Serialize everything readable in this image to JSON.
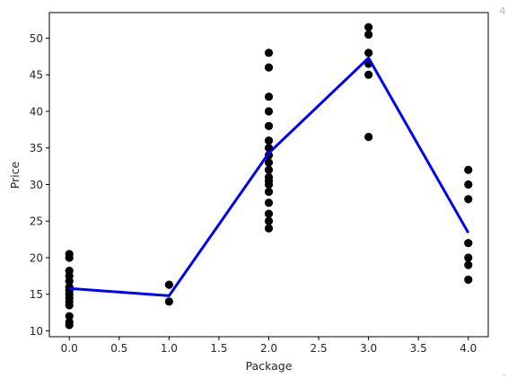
{
  "chart_data": {
    "type": "scatter",
    "title": "",
    "xlabel": "Package",
    "ylabel": "Price",
    "xlim": [
      -0.2,
      4.2
    ],
    "ylim": [
      9.2,
      53.5
    ],
    "xticks": [
      0.0,
      0.5,
      1.0,
      1.5,
      2.0,
      2.5,
      3.0,
      3.5,
      4.0
    ],
    "xtick_labels": [
      "0.0",
      "0.5",
      "1.0",
      "1.5",
      "2.0",
      "2.5",
      "3.0",
      "3.5",
      "4.0"
    ],
    "yticks": [
      10,
      15,
      20,
      25,
      30,
      35,
      40,
      45,
      50
    ],
    "ytick_labels": [
      "10",
      "15",
      "20",
      "25",
      "30",
      "35",
      "40",
      "45",
      "50"
    ],
    "grid": false,
    "series": [
      {
        "kind": "scatter",
        "color": "#000000",
        "points": [
          [
            0,
            20.5
          ],
          [
            0,
            20.0
          ],
          [
            0,
            18.2
          ],
          [
            0,
            17.5
          ],
          [
            0,
            16.8
          ],
          [
            0,
            16.0
          ],
          [
            0,
            15.5
          ],
          [
            0,
            15.0
          ],
          [
            0,
            14.5
          ],
          [
            0,
            14.0
          ],
          [
            0,
            13.5
          ],
          [
            0,
            12.0
          ],
          [
            0,
            11.2
          ],
          [
            0,
            10.8
          ],
          [
            1,
            16.3
          ],
          [
            1,
            14.0
          ],
          [
            2,
            48.0
          ],
          [
            2,
            46.0
          ],
          [
            2,
            42.0
          ],
          [
            2,
            40.0
          ],
          [
            2,
            38.0
          ],
          [
            2,
            36.0
          ],
          [
            2,
            35.0
          ],
          [
            2,
            34.0
          ],
          [
            2,
            33.0
          ],
          [
            2,
            32.0
          ],
          [
            2,
            31.0
          ],
          [
            2,
            30.5
          ],
          [
            2,
            30.0
          ],
          [
            2,
            29.0
          ],
          [
            2,
            27.5
          ],
          [
            2,
            26.0
          ],
          [
            2,
            25.0
          ],
          [
            2,
            24.0
          ],
          [
            3,
            51.5
          ],
          [
            3,
            50.5
          ],
          [
            3,
            48.0
          ],
          [
            3,
            46.5
          ],
          [
            3,
            45.0
          ],
          [
            3,
            36.5
          ],
          [
            4,
            32.0
          ],
          [
            4,
            30.0
          ],
          [
            4,
            28.0
          ],
          [
            4,
            22.0
          ],
          [
            4,
            20.0
          ],
          [
            4,
            19.0
          ],
          [
            4,
            17.0
          ]
        ]
      },
      {
        "kind": "line",
        "color": "#0000ff",
        "points": [
          [
            0,
            15.8
          ],
          [
            1,
            14.8
          ],
          [
            2,
            34.3
          ],
          [
            3,
            47.3
          ],
          [
            4,
            23.4
          ]
        ]
      }
    ]
  },
  "decorations": {
    "top_right_mark": "4",
    "bottom_right_mark": "-"
  }
}
